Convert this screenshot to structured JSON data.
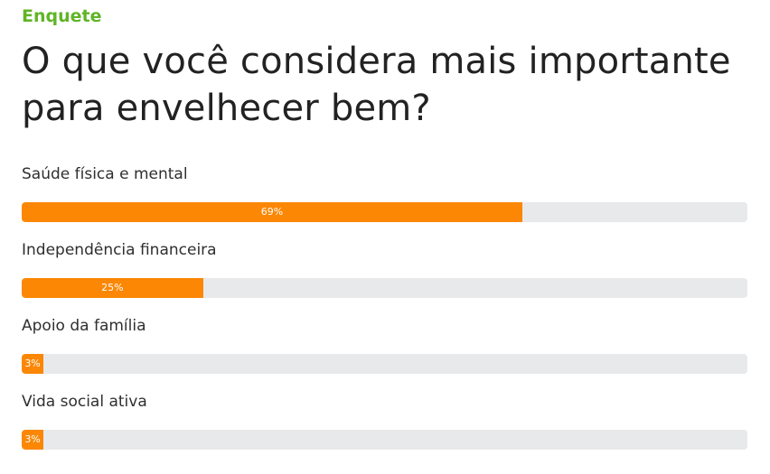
{
  "poll": {
    "kicker": "Enquete",
    "question": "O que você considera mais importante para envelhecer bem?",
    "options": [
      {
        "label": "Saúde física e mental",
        "percent_label": "69%",
        "value": 69
      },
      {
        "label": "Independência financeira",
        "percent_label": "25%",
        "value": 25
      },
      {
        "label": "Apoio da família",
        "percent_label": "3%",
        "value": 3
      },
      {
        "label": "Vida social ativa",
        "percent_label": "3%",
        "value": 3
      }
    ]
  },
  "colors": {
    "kicker": "#5fb526",
    "bar_fill": "#fb8704",
    "bar_track": "#e8e9eb"
  }
}
